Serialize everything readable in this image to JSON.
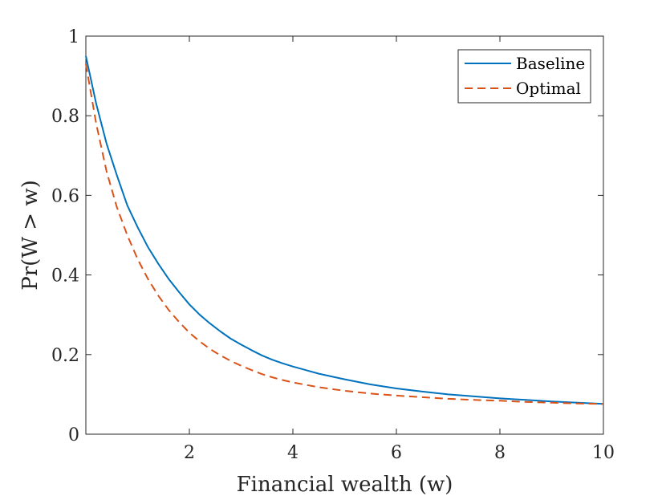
{
  "chart_data": {
    "type": "line",
    "title": "",
    "xlabel": "Financial wealth (w)",
    "ylabel": "Pr(W > w)",
    "xlim": [
      0,
      10
    ],
    "ylim": [
      0,
      1
    ],
    "xticks": [
      2,
      4,
      6,
      8,
      10
    ],
    "xtick_labels": [
      "2",
      "4",
      "6",
      "8",
      "10"
    ],
    "yticks": [
      0,
      0.2,
      0.4,
      0.6,
      0.8,
      1
    ],
    "ytick_labels": [
      "0",
      "0.2",
      "0.4",
      "0.6",
      "0.8",
      "1"
    ],
    "grid": false,
    "legend_position": "top-right",
    "series": [
      {
        "name": "Baseline",
        "color": "#0072BD",
        "style": "solid",
        "x": [
          0,
          0.2,
          0.4,
          0.6,
          0.8,
          1.0,
          1.2,
          1.4,
          1.6,
          1.8,
          2.0,
          2.2,
          2.4,
          2.6,
          2.8,
          3.0,
          3.2,
          3.4,
          3.6,
          3.8,
          4.0,
          4.5,
          5.0,
          5.5,
          6.0,
          6.5,
          7.0,
          7.5,
          8.0,
          8.5,
          9.0,
          9.5,
          10.0
        ],
        "y": [
          0.95,
          0.83,
          0.73,
          0.65,
          0.575,
          0.52,
          0.47,
          0.428,
          0.39,
          0.357,
          0.326,
          0.3,
          0.278,
          0.258,
          0.24,
          0.225,
          0.211,
          0.198,
          0.187,
          0.178,
          0.17,
          0.152,
          0.138,
          0.125,
          0.115,
          0.107,
          0.1,
          0.095,
          0.09,
          0.086,
          0.082,
          0.079,
          0.076
        ]
      },
      {
        "name": "Optimal",
        "color": "#D95319",
        "style": "dashed",
        "x": [
          0,
          0.2,
          0.4,
          0.6,
          0.8,
          1.0,
          1.2,
          1.4,
          1.6,
          1.8,
          2.0,
          2.2,
          2.4,
          2.6,
          2.8,
          3.0,
          3.2,
          3.4,
          3.6,
          3.8,
          4.0,
          4.5,
          5.0,
          5.5,
          6.0,
          6.5,
          7.0,
          7.5,
          8.0,
          8.5,
          9.0,
          9.5,
          10.0
        ],
        "y": [
          0.93,
          0.78,
          0.66,
          0.57,
          0.5,
          0.44,
          0.39,
          0.348,
          0.312,
          0.282,
          0.255,
          0.233,
          0.214,
          0.198,
          0.184,
          0.172,
          0.161,
          0.151,
          0.143,
          0.136,
          0.13,
          0.118,
          0.109,
          0.102,
          0.097,
          0.093,
          0.089,
          0.086,
          0.084,
          0.081,
          0.079,
          0.077,
          0.076
        ]
      }
    ]
  }
}
